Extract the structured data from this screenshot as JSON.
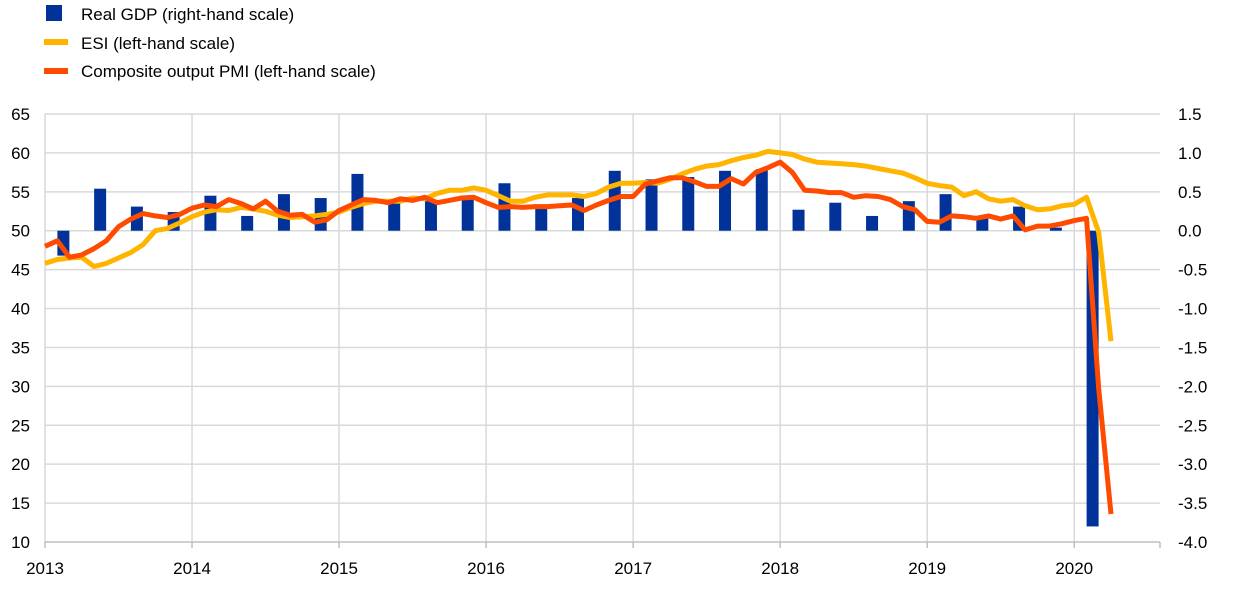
{
  "chart_data": {
    "type": "bar+line",
    "title": "",
    "xlabel": "",
    "ylabel_left": "",
    "ylabel_right": "",
    "legend_placement": "top-left",
    "grid": true,
    "x_range": [
      "2013-01",
      "2020-08"
    ],
    "x_ticks": [
      "2013",
      "2014",
      "2015",
      "2016",
      "2017",
      "2018",
      "2019",
      "2020"
    ],
    "ylim_left": [
      10,
      65
    ],
    "yticks_left": [
      "65",
      "60",
      "55",
      "50",
      "45",
      "40",
      "35",
      "30",
      "25",
      "20",
      "15",
      "10"
    ],
    "ylim_right": [
      -4.0,
      1.5
    ],
    "yticks_right": [
      "1.5",
      "1.0",
      "0.5",
      "0.0",
      "-0.5",
      "-1.0",
      "-1.5",
      "-2.0",
      "-2.5",
      "-3.0",
      "-3.5",
      "-4.0"
    ],
    "series": [
      {
        "name": "Real GDP (right-hand scale)",
        "kind": "bar",
        "axis": "right",
        "color": "#003299",
        "frequency": "quarterly",
        "start": "2013-Q1",
        "values": [
          -0.32,
          0.54,
          0.31,
          0.24,
          0.45,
          0.19,
          0.47,
          0.42,
          0.73,
          0.36,
          0.38,
          0.4,
          0.61,
          0.32,
          0.42,
          0.77,
          0.66,
          0.69,
          0.77,
          0.79,
          0.27,
          0.36,
          0.19,
          0.38,
          0.47,
          0.17,
          0.31,
          0.04,
          -3.8
        ]
      },
      {
        "name": "ESI (left-hand scale)",
        "kind": "line",
        "axis": "left",
        "color": "#FFB400",
        "frequency": "monthly",
        "start": "2013-01",
        "values": [
          45.8,
          46.3,
          46.5,
          46.6,
          45.4,
          45.8,
          46.5,
          47.2,
          48.2,
          50.0,
          50.3,
          51.0,
          51.8,
          52.4,
          52.7,
          52.6,
          53.0,
          52.8,
          52.5,
          52.0,
          51.7,
          51.8,
          51.9,
          52.1,
          52.4,
          53.0,
          53.5,
          53.8,
          53.8,
          53.8,
          54.2,
          54.1,
          54.8,
          55.2,
          55.2,
          55.5,
          55.2,
          54.5,
          53.8,
          53.8,
          54.3,
          54.6,
          54.6,
          54.6,
          54.4,
          54.8,
          55.6,
          56.1,
          56.1,
          56.2,
          56.1,
          56.6,
          57.3,
          57.9,
          58.3,
          58.5,
          59.0,
          59.4,
          59.7,
          60.2,
          60.0,
          59.8,
          59.2,
          58.8,
          58.7,
          58.6,
          58.5,
          58.3,
          58.0,
          57.7,
          57.4,
          56.8,
          56.1,
          55.8,
          55.6,
          54.5,
          55.0,
          54.1,
          53.8,
          54.0,
          53.2,
          52.7,
          52.8,
          53.2,
          53.4,
          54.3,
          49.8,
          35.8
        ]
      },
      {
        "name": "Composite output PMI (left-hand scale)",
        "kind": "line",
        "axis": "left",
        "color": "#FF4B00",
        "frequency": "monthly",
        "start": "2013-01",
        "values": [
          48.0,
          48.7,
          46.6,
          46.9,
          47.7,
          48.7,
          50.5,
          51.5,
          52.2,
          51.9,
          51.7,
          52.1,
          52.9,
          53.3,
          53.1,
          54.0,
          53.5,
          52.8,
          53.8,
          52.5,
          52.0,
          52.1,
          51.1,
          51.4,
          52.6,
          53.3,
          54.0,
          53.9,
          53.6,
          54.1,
          53.9,
          54.3,
          53.6,
          53.9,
          54.2,
          54.3,
          53.6,
          53.0,
          53.1,
          53.0,
          53.1,
          53.1,
          53.2,
          53.3,
          52.6,
          53.3,
          53.9,
          54.4,
          54.4,
          56.0,
          56.4,
          56.8,
          56.8,
          56.3,
          55.7,
          55.7,
          56.7,
          56.0,
          57.5,
          58.1,
          58.8,
          57.5,
          55.2,
          55.1,
          54.9,
          54.9,
          54.3,
          54.5,
          54.4,
          54.0,
          53.1,
          52.7,
          51.2,
          51.1,
          51.9,
          51.8,
          51.6,
          51.9,
          51.5,
          51.9,
          50.1,
          50.6,
          50.6,
          50.9,
          51.3,
          51.6,
          29.7,
          13.6
        ]
      }
    ]
  }
}
